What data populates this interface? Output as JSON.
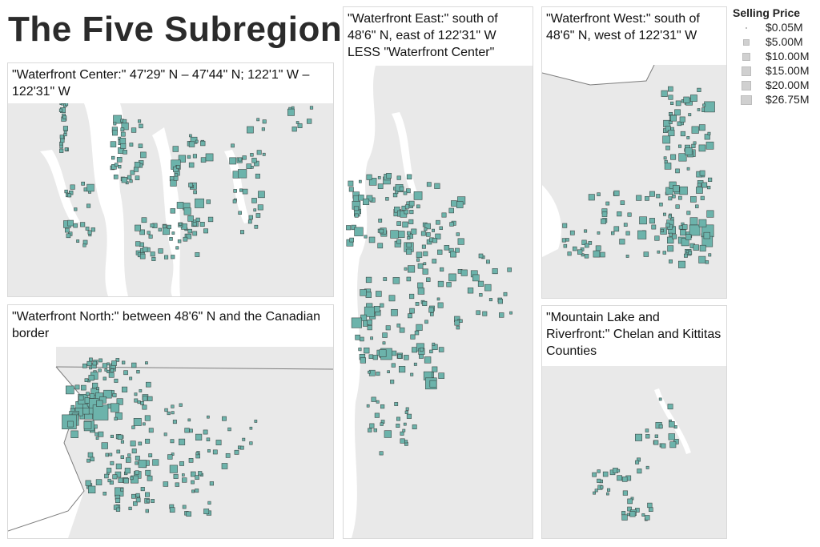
{
  "title": "The Five Subregions",
  "legend": {
    "title": "Selling Price",
    "items": [
      {
        "label": "$0.05M",
        "value_m": 0.05
      },
      {
        "label": "$5.00M",
        "value_m": 5.0
      },
      {
        "label": "$10.00M",
        "value_m": 10.0
      },
      {
        "label": "$15.00M",
        "value_m": 15.0
      },
      {
        "label": "$20.00M",
        "value_m": 20.0
      },
      {
        "label": "$26.75M",
        "value_m": 26.75
      }
    ]
  },
  "colors": {
    "marker": "#6cb3ab",
    "marker_stroke": "#3d4a48",
    "land": "#e9e9e9",
    "water": "#ffffff",
    "border": "#7d7d7d"
  },
  "panels": {
    "center": {
      "title": "\"Waterfront Center:\" 47'29\" N – 47'44\" N; 122'1\" W – 122'31\" W"
    },
    "east": {
      "title": "\"Waterfront East:\" south of 48'6\" N, east of 122'31\" W LESS \"Waterfront Center\""
    },
    "west": {
      "title": "\"Waterfront West:\" south of 48'6\" N, west of 122'31\" W"
    },
    "north": {
      "title": "\"Waterfront North:\" between 48'6\" N and the Canadian border"
    },
    "mountain": {
      "title": "\"Mountain Lake and Riverfront:\" Chelan and Kittitas Counties"
    }
  }
}
